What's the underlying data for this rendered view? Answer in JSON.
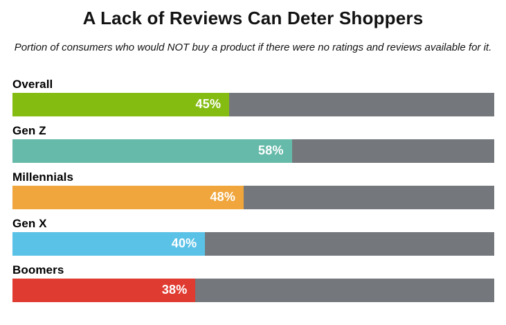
{
  "title": "A Lack of Reviews Can Deter Shoppers",
  "subtitle": "Portion of consumers who would NOT buy a product if there were no ratings and reviews available for it.",
  "chart_data": {
    "type": "bar",
    "orientation": "horizontal",
    "title": "A Lack of Reviews Can Deter Shoppers",
    "subtitle": "Portion of consumers who would NOT buy a product if there were no ratings and reviews available for it.",
    "categories": [
      "Overall",
      "Gen Z",
      "Millennials",
      "Gen X",
      "Boomers"
    ],
    "values": [
      45,
      58,
      48,
      40,
      38
    ],
    "value_labels": [
      "45%",
      "58%",
      "48%",
      "40%",
      "38%"
    ],
    "value_suffix": "%",
    "xlim": [
      0,
      100
    ],
    "xlabel": "",
    "ylabel": "",
    "grid": false,
    "legend": false,
    "bar_colors": [
      "#84BC12",
      "#66BAA9",
      "#F0A63C",
      "#5BC2E7",
      "#E03B30"
    ],
    "track_color": "#74787C",
    "value_label_color": "#FFFFFF",
    "category_label_color": "#000000"
  }
}
